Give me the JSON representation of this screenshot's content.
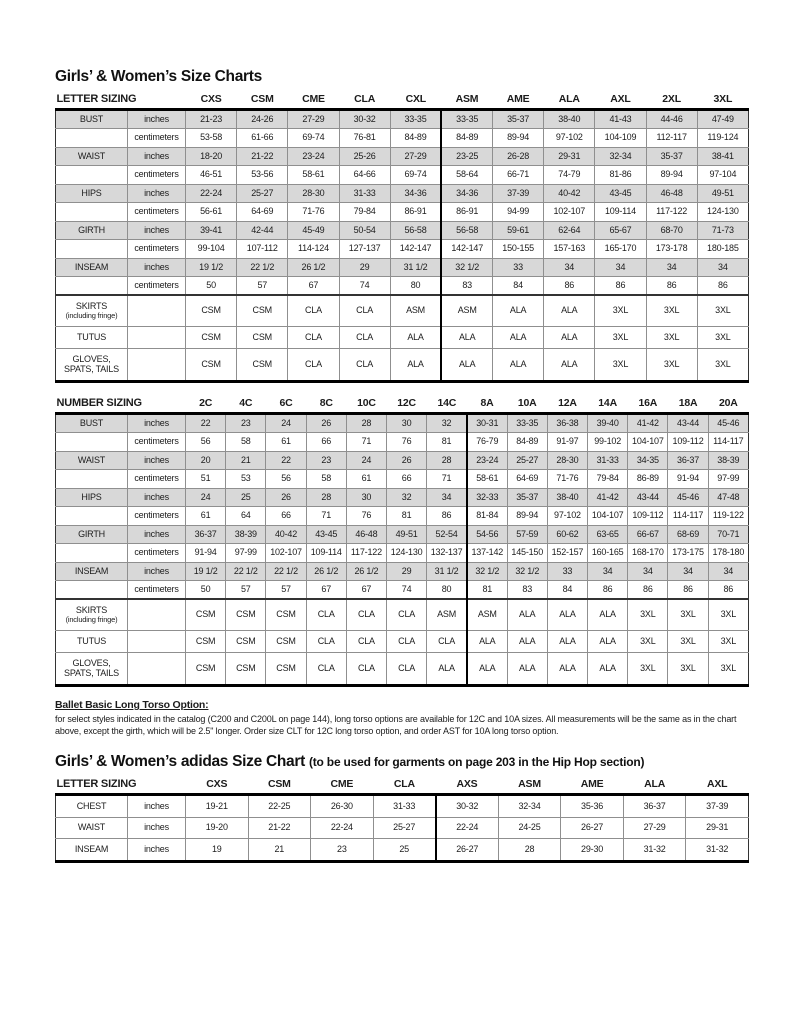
{
  "titles": {
    "main": "Girls’ & Women’s Size Charts",
    "adidas_main": "Girls’ & Women’s adidas Size Chart",
    "adidas_sub": "(to be used for garments on page 203 in the Hip Hop section)"
  },
  "ballet_note": {
    "heading": "Ballet Basic Long Torso Option:",
    "text": "for select styles indicated in the catalog (C200 and C200L on page 144), long torso options are available for 12C and 10A sizes. All measurements will be the same as in the chart above, except the girth, which will be 2.5\" longer. Order size CLT for 12C long torso option, and order AST for 10A long torso option."
  },
  "colors": {
    "shaded_row": "#d8d8d8",
    "text": "#1c1c1c",
    "heavy_rule": "#000000",
    "cell_border": "#8f8f8f"
  },
  "tables": [
    {
      "name": "letter-sizing",
      "header_label": "LETTER SIZING",
      "columns": [
        "CXS",
        "CSM",
        "CME",
        "CLA",
        "CXL",
        "ASM",
        "AME",
        "ALA",
        "AXL",
        "2XL",
        "3XL"
      ],
      "heavy_divider_before_col": 5,
      "rows": [
        {
          "label": "BUST",
          "unit": "inches",
          "shaded": true,
          "values": [
            "21-23",
            "24-26",
            "27-29",
            "30-32",
            "33-35",
            "33-35",
            "35-37",
            "38-40",
            "41-43",
            "44-46",
            "47-49"
          ]
        },
        {
          "label": "",
          "unit": "centimeters",
          "shaded": false,
          "values": [
            "53-58",
            "61-66",
            "69-74",
            "76-81",
            "84-89",
            "84-89",
            "89-94",
            "97-102",
            "104-109",
            "112-117",
            "119-124"
          ]
        },
        {
          "label": "WAIST",
          "unit": "inches",
          "shaded": true,
          "values": [
            "18-20",
            "21-22",
            "23-24",
            "25-26",
            "27-29",
            "23-25",
            "26-28",
            "29-31",
            "32-34",
            "35-37",
            "38-41"
          ]
        },
        {
          "label": "",
          "unit": "centimeters",
          "shaded": false,
          "values": [
            "46-51",
            "53-56",
            "58-61",
            "64-66",
            "69-74",
            "58-64",
            "66-71",
            "74-79",
            "81-86",
            "89-94",
            "97-104"
          ]
        },
        {
          "label": "HIPS",
          "unit": "inches",
          "shaded": true,
          "values": [
            "22-24",
            "25-27",
            "28-30",
            "31-33",
            "34-36",
            "34-36",
            "37-39",
            "40-42",
            "43-45",
            "46-48",
            "49-51"
          ]
        },
        {
          "label": "",
          "unit": "centimeters",
          "shaded": false,
          "values": [
            "56-61",
            "64-69",
            "71-76",
            "79-84",
            "86-91",
            "86-91",
            "94-99",
            "102-107",
            "109-114",
            "117-122",
            "124-130"
          ]
        },
        {
          "label": "GIRTH",
          "unit": "inches",
          "shaded": true,
          "values": [
            "39-41",
            "42-44",
            "45-49",
            "50-54",
            "56-58",
            "56-58",
            "59-61",
            "62-64",
            "65-67",
            "68-70",
            "71-73"
          ]
        },
        {
          "label": "",
          "unit": "centimeters",
          "shaded": false,
          "values": [
            "99-104",
            "107-112",
            "114-124",
            "127-137",
            "142-147",
            "142-147",
            "150-155",
            "157-163",
            "165-170",
            "173-178",
            "180-185"
          ]
        },
        {
          "label": "INSEAM",
          "unit": "inches",
          "shaded": true,
          "values": [
            "19 1/2",
            "22 1/2",
            "26 1/2",
            "29",
            "31 1/2",
            "32 1/2",
            "33",
            "34",
            "34",
            "34",
            "34"
          ]
        },
        {
          "label": "",
          "unit": "centimeters",
          "shaded": false,
          "values": [
            "50",
            "57",
            "67",
            "74",
            "80",
            "83",
            "84",
            "86",
            "86",
            "86",
            "86"
          ]
        }
      ],
      "special_rows": [
        {
          "label": "SKIRTS",
          "sublabel": "(including fringe)",
          "values": [
            "CSM",
            "CSM",
            "CLA",
            "CLA",
            "ASM",
            "ASM",
            "ALA",
            "ALA",
            "3XL",
            "3XL",
            "3XL"
          ]
        },
        {
          "label": "TUTUS",
          "sublabel": "",
          "values": [
            "CSM",
            "CSM",
            "CLA",
            "CLA",
            "ALA",
            "ALA",
            "ALA",
            "ALA",
            "3XL",
            "3XL",
            "3XL"
          ]
        },
        {
          "label": "GLOVES, SPATS, TAILS",
          "sublabel": "",
          "values": [
            "CSM",
            "CSM",
            "CLA",
            "CLA",
            "ALA",
            "ALA",
            "ALA",
            "ALA",
            "3XL",
            "3XL",
            "3XL"
          ]
        }
      ]
    },
    {
      "name": "number-sizing",
      "header_label": "NUMBER SIZING",
      "columns": [
        "2C",
        "4C",
        "6C",
        "8C",
        "10C",
        "12C",
        "14C",
        "8A",
        "10A",
        "12A",
        "14A",
        "16A",
        "18A",
        "20A"
      ],
      "heavy_divider_before_col": 7,
      "rows": [
        {
          "label": "BUST",
          "unit": "inches",
          "shaded": true,
          "values": [
            "22",
            "23",
            "24",
            "26",
            "28",
            "30",
            "32",
            "30-31",
            "33-35",
            "36-38",
            "39-40",
            "41-42",
            "43-44",
            "45-46"
          ]
        },
        {
          "label": "",
          "unit": "centimeters",
          "shaded": false,
          "values": [
            "56",
            "58",
            "61",
            "66",
            "71",
            "76",
            "81",
            "76-79",
            "84-89",
            "91-97",
            "99-102",
            "104-107",
            "109-112",
            "114-117"
          ]
        },
        {
          "label": "WAIST",
          "unit": "inches",
          "shaded": true,
          "values": [
            "20",
            "21",
            "22",
            "23",
            "24",
            "26",
            "28",
            "23-24",
            "25-27",
            "28-30",
            "31-33",
            "34-35",
            "36-37",
            "38-39"
          ]
        },
        {
          "label": "",
          "unit": "centimeters",
          "shaded": false,
          "values": [
            "51",
            "53",
            "56",
            "58",
            "61",
            "66",
            "71",
            "58-61",
            "64-69",
            "71-76",
            "79-84",
            "86-89",
            "91-94",
            "97-99"
          ]
        },
        {
          "label": "HIPS",
          "unit": "inches",
          "shaded": true,
          "values": [
            "24",
            "25",
            "26",
            "28",
            "30",
            "32",
            "34",
            "32-33",
            "35-37",
            "38-40",
            "41-42",
            "43-44",
            "45-46",
            "47-48"
          ]
        },
        {
          "label": "",
          "unit": "centimeters",
          "shaded": false,
          "values": [
            "61",
            "64",
            "66",
            "71",
            "76",
            "81",
            "86",
            "81-84",
            "89-94",
            "97-102",
            "104-107",
            "109-112",
            "114-117",
            "119-122"
          ]
        },
        {
          "label": "GIRTH",
          "unit": "inches",
          "shaded": true,
          "values": [
            "36-37",
            "38-39",
            "40-42",
            "43-45",
            "46-48",
            "49-51",
            "52-54",
            "54-56",
            "57-59",
            "60-62",
            "63-65",
            "66-67",
            "68-69",
            "70-71"
          ]
        },
        {
          "label": "",
          "unit": "centimeters",
          "shaded": false,
          "values": [
            "91-94",
            "97-99",
            "102-107",
            "109-114",
            "117-122",
            "124-130",
            "132-137",
            "137-142",
            "145-150",
            "152-157",
            "160-165",
            "168-170",
            "173-175",
            "178-180"
          ]
        },
        {
          "label": "INSEAM",
          "unit": "inches",
          "shaded": true,
          "values": [
            "19 1/2",
            "22 1/2",
            "22 1/2",
            "26 1/2",
            "26 1/2",
            "29",
            "31 1/2",
            "32 1/2",
            "32 1/2",
            "33",
            "34",
            "34",
            "34",
            "34"
          ]
        },
        {
          "label": "",
          "unit": "centimeters",
          "shaded": false,
          "values": [
            "50",
            "57",
            "57",
            "67",
            "67",
            "74",
            "80",
            "81",
            "83",
            "84",
            "86",
            "86",
            "86",
            "86"
          ]
        }
      ],
      "special_rows": [
        {
          "label": "SKIRTS",
          "sublabel": "(including fringe)",
          "values": [
            "CSM",
            "CSM",
            "CSM",
            "CLA",
            "CLA",
            "CLA",
            "ASM",
            "ASM",
            "ALA",
            "ALA",
            "ALA",
            "3XL",
            "3XL",
            "3XL"
          ]
        },
        {
          "label": "TUTUS",
          "sublabel": "",
          "values": [
            "CSM",
            "CSM",
            "CSM",
            "CLA",
            "CLA",
            "CLA",
            "CLA",
            "ALA",
            "ALA",
            "ALA",
            "ALA",
            "3XL",
            "3XL",
            "3XL"
          ]
        },
        {
          "label": "GLOVES, SPATS, TAILS",
          "sublabel": "",
          "values": [
            "CSM",
            "CSM",
            "CSM",
            "CLA",
            "CLA",
            "CLA",
            "ALA",
            "ALA",
            "ALA",
            "ALA",
            "ALA",
            "3XL",
            "3XL",
            "3XL"
          ]
        }
      ]
    },
    {
      "name": "adidas-letter-sizing",
      "header_label": "LETTER SIZING",
      "columns": [
        "CXS",
        "CSM",
        "CME",
        "CLA",
        "AXS",
        "ASM",
        "AME",
        "ALA",
        "AXL"
      ],
      "heavy_divider_before_col": 4,
      "rows": [
        {
          "label": "CHEST",
          "unit": "inches",
          "shaded": false,
          "values": [
            "19-21",
            "22-25",
            "26-30",
            "31-33",
            "30-32",
            "32-34",
            "35-36",
            "36-37",
            "37-39"
          ]
        },
        {
          "label": "WAIST",
          "unit": "inches",
          "shaded": false,
          "values": [
            "19-20",
            "21-22",
            "22-24",
            "25-27",
            "22-24",
            "24-25",
            "26-27",
            "27-29",
            "29-31"
          ]
        },
        {
          "label": "INSEAM",
          "unit": "inches",
          "shaded": false,
          "values": [
            "19",
            "21",
            "23",
            "25",
            "26-27",
            "28",
            "29-30",
            "31-32",
            "31-32"
          ]
        }
      ],
      "special_rows": []
    }
  ]
}
